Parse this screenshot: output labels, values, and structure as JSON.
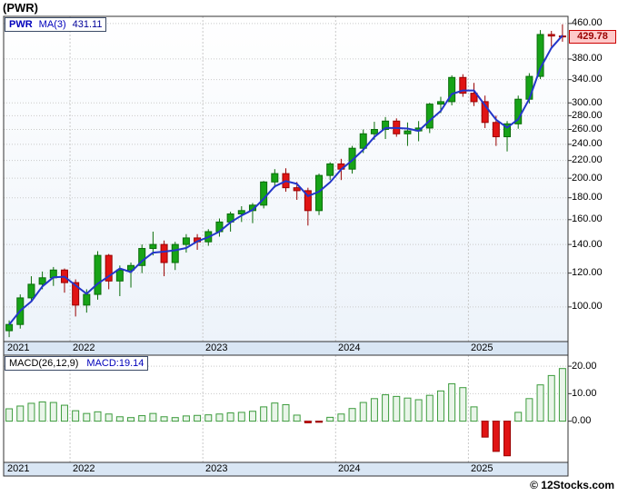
{
  "title": "(PWR)",
  "legend": {
    "symbol": "PWR",
    "ma_label": "MA(3)",
    "ma_value": "431.11"
  },
  "price_badge": "429.78",
  "macd_legend": {
    "label": "MACD(26,12,9)",
    "value_label": "MACD:19.14"
  },
  "copyright": "© 12Stocks.com",
  "colors": {
    "up_fill": "#17a317",
    "up_stroke": "#0a6d0a",
    "down_fill": "#e01414",
    "down_stroke": "#9a0000",
    "ma_line": "#2336c9",
    "macd_pos_fill": "#e9f5e9",
    "macd_pos_stroke": "#3c9b3c",
    "macd_neg_fill": "#e01414",
    "macd_neg_stroke": "#9a0000",
    "grid": "#c9c9c9",
    "strip_bg": "#d9e6f4",
    "border": "#333333",
    "badge_bg": "#ffc9c9",
    "badge_border": "#cc0000",
    "badge_text": "#990000"
  },
  "chart_data": {
    "type": "candlestick+macd",
    "symbol": "PWR",
    "interval": "monthly",
    "price_scale": {
      "type": "log",
      "min": 83,
      "max": 478
    },
    "macd_scale": {
      "min": -15,
      "max": 24
    },
    "price_tick_labels": [
      "460.00",
      "380.00",
      "340.00",
      "300.00",
      "280.00",
      "260.00",
      "240.00",
      "220.00",
      "200.00",
      "180.00",
      "160.00",
      "140.00",
      "120.00",
      "100.00"
    ],
    "macd_tick_labels": [
      "20.00",
      "10.00",
      "0.00"
    ],
    "years": [
      {
        "label": "2021",
        "month_index": 0
      },
      {
        "label": "2022",
        "month_index": 6
      },
      {
        "label": "2023",
        "month_index": 18
      },
      {
        "label": "2024",
        "month_index": 30
      },
      {
        "label": "2025",
        "month_index": 42
      }
    ],
    "ma_window": 3,
    "candles": [
      [
        "2021-07",
        88,
        93,
        85,
        91
      ],
      [
        "2021-08",
        91,
        107,
        89,
        105
      ],
      [
        "2021-09",
        105,
        118,
        103,
        113
      ],
      [
        "2021-10",
        113,
        121,
        110,
        117
      ],
      [
        "2021-11",
        117,
        124,
        112,
        122
      ],
      [
        "2021-12",
        122,
        123,
        108,
        114
      ],
      [
        "2022-01",
        114,
        116,
        95,
        101
      ],
      [
        "2022-02",
        101,
        110,
        97,
        107
      ],
      [
        "2022-03",
        107,
        135,
        104,
        132
      ],
      [
        "2022-04",
        132,
        133,
        110,
        115
      ],
      [
        "2022-05",
        115,
        125,
        106,
        122
      ],
      [
        "2022-06",
        122,
        127,
        111,
        125
      ],
      [
        "2022-07",
        125,
        140,
        120,
        137
      ],
      [
        "2022-08",
        137,
        150,
        132,
        140
      ],
      [
        "2022-09",
        140,
        143,
        118,
        127
      ],
      [
        "2022-10",
        127,
        142,
        122,
        140
      ],
      [
        "2022-11",
        140,
        148,
        134,
        145
      ],
      [
        "2022-12",
        145,
        148,
        136,
        142
      ],
      [
        "2023-01",
        142,
        152,
        139,
        150
      ],
      [
        "2023-02",
        150,
        161,
        146,
        158
      ],
      [
        "2023-03",
        158,
        167,
        150,
        165
      ],
      [
        "2023-04",
        165,
        172,
        158,
        168
      ],
      [
        "2023-05",
        168,
        175,
        157,
        173
      ],
      [
        "2023-06",
        173,
        197,
        170,
        196
      ],
      [
        "2023-07",
        196,
        210,
        190,
        205
      ],
      [
        "2023-08",
        205,
        211,
        186,
        190
      ],
      [
        "2023-09",
        190,
        196,
        178,
        187
      ],
      [
        "2023-10",
        187,
        190,
        155,
        168
      ],
      [
        "2023-11",
        168,
        205,
        164,
        203
      ],
      [
        "2023-12",
        203,
        218,
        198,
        216
      ],
      [
        "2024-01",
        216,
        222,
        198,
        210
      ],
      [
        "2024-02",
        210,
        238,
        205,
        235
      ],
      [
        "2024-03",
        235,
        260,
        229,
        254
      ],
      [
        "2024-04",
        254,
        271,
        246,
        260
      ],
      [
        "2024-05",
        260,
        278,
        247,
        272
      ],
      [
        "2024-06",
        272,
        276,
        250,
        254
      ],
      [
        "2024-07",
        254,
        270,
        238,
        258
      ],
      [
        "2024-08",
        258,
        272,
        244,
        262
      ],
      [
        "2024-09",
        262,
        300,
        255,
        298
      ],
      [
        "2024-10",
        298,
        310,
        284,
        302
      ],
      [
        "2024-11",
        302,
        348,
        296,
        344
      ],
      [
        "2024-12",
        344,
        350,
        310,
        316
      ],
      [
        "2025-01",
        316,
        334,
        295,
        302
      ],
      [
        "2025-02",
        302,
        312,
        262,
        270
      ],
      [
        "2025-03",
        270,
        280,
        238,
        250
      ],
      [
        "2025-04",
        250,
        272,
        231,
        268
      ],
      [
        "2025-05",
        268,
        312,
        261,
        306
      ],
      [
        "2025-06",
        306,
        352,
        299,
        346
      ],
      [
        "2025-07",
        346,
        444,
        341,
        433.55
      ],
      [
        "2025-08",
        433.55,
        442,
        406,
        430
      ],
      [
        "2025-09",
        430,
        458,
        417,
        429.78
      ]
    ],
    "macd_values": [
      4.5,
      5.5,
      6.5,
      7.0,
      6.8,
      5.8,
      3.8,
      2.8,
      3.4,
      2.6,
      1.6,
      1.3,
      2.0,
      2.8,
      1.6,
      1.3,
      1.9,
      2.1,
      2.3,
      2.6,
      3.0,
      3.2,
      3.6,
      5.2,
      6.6,
      6.0,
      2.2,
      -0.6,
      -0.4,
      1.4,
      2.6,
      4.6,
      6.8,
      8.2,
      9.6,
      9.0,
      8.4,
      7.8,
      9.4,
      11.0,
      13.6,
      12.2,
      5.2,
      -5.8,
      -11.0,
      -12.6,
      3.2,
      8.2,
      13.2,
      16.6,
      19.14
    ]
  }
}
